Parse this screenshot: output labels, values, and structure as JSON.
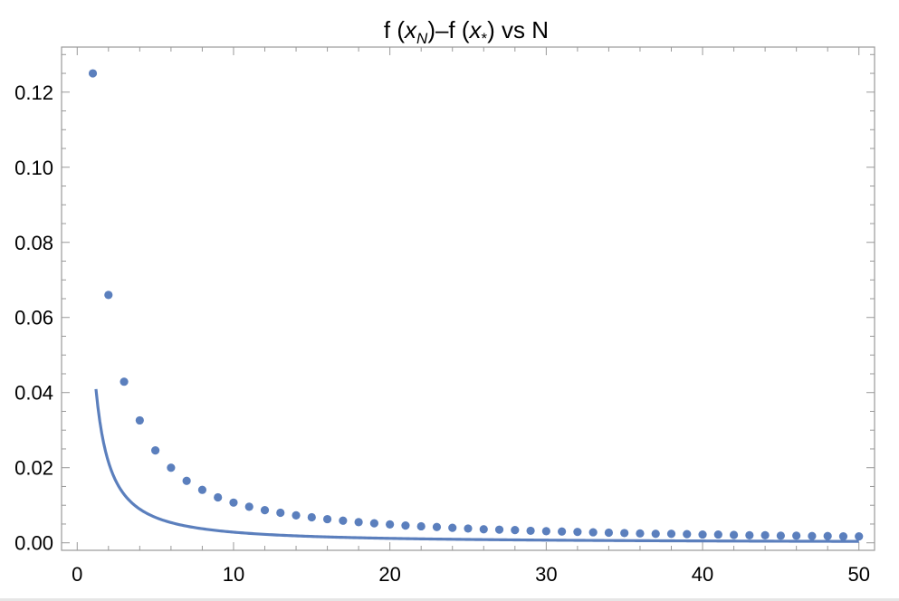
{
  "chart_data": {
    "type": "scatter",
    "title_parts": [
      "f (",
      "x",
      "N",
      ")–f (",
      "x",
      "*",
      ") vs N"
    ],
    "xlabel": "",
    "ylabel": "",
    "xlim": [
      -1,
      51
    ],
    "ylim": [
      -0.002,
      0.132
    ],
    "x_ticks": [
      {
        "value": 0,
        "label": "0"
      },
      {
        "value": 10,
        "label": "10"
      },
      {
        "value": 20,
        "label": "20"
      },
      {
        "value": 30,
        "label": "30"
      },
      {
        "value": 40,
        "label": "40"
      },
      {
        "value": 50,
        "label": "50"
      }
    ],
    "y_ticks": [
      {
        "value": 0,
        "label": "0.00"
      },
      {
        "value": 0.02,
        "label": "0.02"
      },
      {
        "value": 0.04,
        "label": "0.04"
      },
      {
        "value": 0.06,
        "label": "0.06"
      },
      {
        "value": 0.08,
        "label": "0.08"
      },
      {
        "value": 0.1,
        "label": "0.10"
      },
      {
        "value": 0.12,
        "label": "0.12"
      }
    ],
    "frame": true,
    "grid": false,
    "color": "#5b7fbd",
    "series": [
      {
        "kind": "points",
        "x": [
          1,
          2,
          3,
          4,
          5,
          6,
          7,
          8,
          9,
          10,
          11,
          12,
          13,
          14,
          15,
          16,
          17,
          18,
          19,
          20,
          21,
          22,
          23,
          24,
          25,
          26,
          27,
          28,
          29,
          30,
          31,
          32,
          33,
          34,
          35,
          36,
          37,
          38,
          39,
          40,
          41,
          42,
          43,
          44,
          45,
          46,
          47,
          48,
          49,
          50
        ],
        "y": [
          0.125,
          0.066,
          0.0429,
          0.0326,
          0.0246,
          0.02,
          0.0165,
          0.0141,
          0.0121,
          0.0107,
          0.0096,
          0.0087,
          0.008,
          0.0073,
          0.0068,
          0.0063,
          0.0059,
          0.0055,
          0.0052,
          0.0049,
          0.0046,
          0.0044,
          0.0042,
          0.004,
          0.0038,
          0.0036,
          0.0035,
          0.0034,
          0.0032,
          0.0031,
          0.003,
          0.0029,
          0.0028,
          0.0027,
          0.0026,
          0.0025,
          0.0024,
          0.0024,
          0.0023,
          0.0022,
          0.0022,
          0.0021,
          0.002,
          0.002,
          0.0019,
          0.0019,
          0.0018,
          0.0018,
          0.0017,
          0.0017
        ]
      },
      {
        "kind": "curve",
        "formula": "0.0515 * x^-1.26",
        "x_range": [
          1.2,
          50
        ],
        "coef": 0.0515,
        "exponent": -1.26
      }
    ]
  }
}
